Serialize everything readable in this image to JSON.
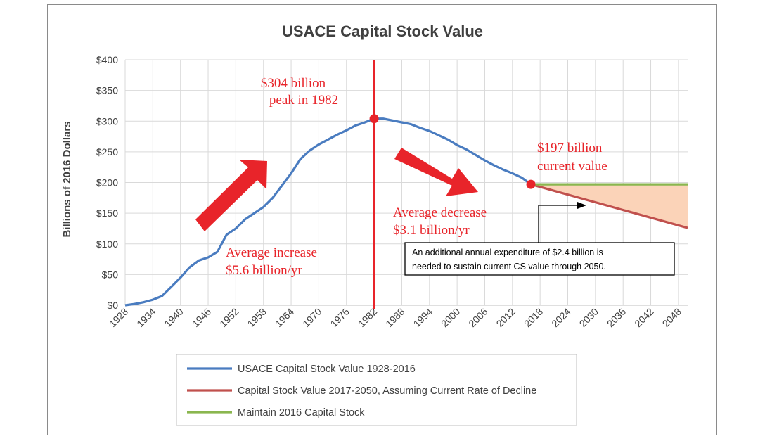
{
  "chart_data": {
    "type": "line",
    "title": "USACE Capital Stock Value",
    "xlabel": "",
    "ylabel": "Billions of 2016 Dollars",
    "xlim": [
      1928,
      2050
    ],
    "ylim": [
      0,
      400
    ],
    "y_tick_labels": [
      "$0",
      "$50",
      "$100",
      "$150",
      "$200",
      "$250",
      "$300",
      "$350",
      "$400"
    ],
    "x_tick_labels": [
      "1928",
      "1934",
      "1940",
      "1946",
      "1952",
      "1958",
      "1964",
      "1970",
      "1976",
      "1982",
      "1988",
      "1994",
      "2000",
      "2006",
      "2012",
      "2018",
      "2024",
      "2030",
      "2036",
      "2042",
      "2048"
    ],
    "grid": true,
    "legend_position": "bottom",
    "series": [
      {
        "name": "USACE Capital Stock Value 1928-2016",
        "color": "#4a7cc0",
        "x": [
          1928,
          1930,
          1932,
          1934,
          1936,
          1938,
          1940,
          1942,
          1944,
          1946,
          1948,
          1950,
          1952,
          1954,
          1956,
          1958,
          1960,
          1962,
          1964,
          1966,
          1968,
          1970,
          1972,
          1974,
          1976,
          1978,
          1980,
          1982,
          1984,
          1986,
          1988,
          1990,
          1992,
          1994,
          1996,
          1998,
          2000,
          2002,
          2004,
          2006,
          2008,
          2010,
          2012,
          2014,
          2016
        ],
        "y": [
          0,
          2,
          5,
          9,
          15,
          30,
          45,
          62,
          73,
          78,
          87,
          115,
          125,
          140,
          150,
          160,
          175,
          195,
          215,
          238,
          252,
          262,
          270,
          278,
          285,
          293,
          298,
          304,
          304,
          301,
          298,
          295,
          289,
          284,
          277,
          270,
          261,
          254,
          245,
          236,
          228,
          221,
          215,
          208,
          197
        ]
      },
      {
        "name": "Capital Stock Value 2017-2050, Assuming Current Rate of Decline",
        "color": "#c0504d",
        "x": [
          2016,
          2050
        ],
        "y": [
          197,
          126
        ]
      },
      {
        "name": "Maintain 2016 Capital Stock",
        "color": "#8ab64f",
        "x": [
          2016,
          2050
        ],
        "y": [
          197,
          197
        ]
      }
    ],
    "annotations": {
      "peak_line1": "$304 billion",
      "peak_line2": "peak in 1982",
      "current_line1": "$197 billion",
      "current_line2": "current value",
      "increase_line1": "Average increase",
      "increase_line2": "$5.6 billion/yr",
      "decrease_line1": "Average decrease",
      "decrease_line2": "$3.1 billion/yr",
      "note_line1": "An additional annual expenditure of $2.4 billion is",
      "note_line2": "needed to sustain current CS value through 2050."
    },
    "peak_point": {
      "x": 1982,
      "y": 304
    },
    "current_point": {
      "x": 2016,
      "y": 197
    },
    "colors": {
      "annotation": "#e8242a",
      "fill_gap": "#fbd3b8"
    }
  }
}
